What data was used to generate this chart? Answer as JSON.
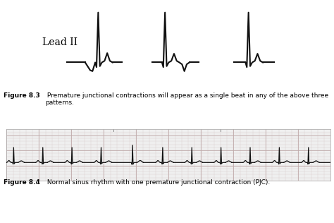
{
  "bg_color": "#ffffff",
  "text_color": "#000000",
  "fig_width": 4.74,
  "fig_height": 3.16,
  "lead_label": "Lead II",
  "fig3_caption_bold": "Figure 8.3",
  "fig3_caption_normal": " Premature junctional contractions will appear as a single beat in any of the above three patterns.",
  "fig4_caption_bold": "Figure 8.4",
  "fig4_caption_normal": " Normal sinus rhythm with one premature junctional contraction (PJC).",
  "ecg_bg": "#efefef",
  "ecg_grid_minor": "#d8cece",
  "ecg_grid_major": "#c0aaaa",
  "ecg_line_color": "#111111",
  "waveform_line_color": "#111111"
}
